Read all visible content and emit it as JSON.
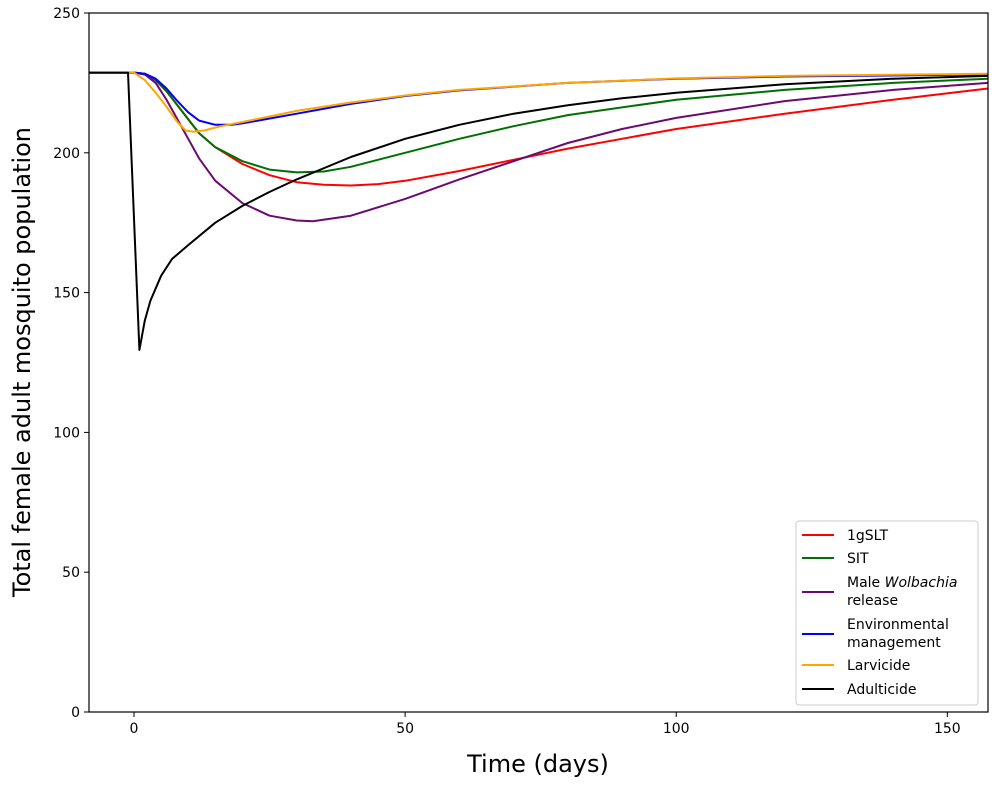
{
  "chart_data": {
    "type": "line",
    "title": "",
    "xlabel": "Time (days)",
    "ylabel": "Total female adult mosquito population",
    "xlim": [
      -8.3,
      157.5
    ],
    "ylim": [
      0,
      250
    ],
    "xticks": [
      0,
      50,
      100,
      150
    ],
    "yticks": [
      0,
      50,
      100,
      150,
      200,
      250
    ],
    "grid": false,
    "legend_placement": "lower-right",
    "series": [
      {
        "name": "1gSLT",
        "color": "#ff0000",
        "points": [
          [
            -8.3,
            228.7
          ],
          [
            0,
            228.7
          ],
          [
            2,
            228.3
          ],
          [
            4,
            226
          ],
          [
            6,
            222
          ],
          [
            8,
            217
          ],
          [
            10,
            212
          ],
          [
            12,
            207
          ],
          [
            15,
            202
          ],
          [
            20,
            196
          ],
          [
            25,
            192
          ],
          [
            30,
            189.5
          ],
          [
            35,
            188.6
          ],
          [
            40,
            188.3
          ],
          [
            45,
            188.8
          ],
          [
            50,
            190
          ],
          [
            60,
            193.5
          ],
          [
            70,
            197.5
          ],
          [
            80,
            201.5
          ],
          [
            90,
            205
          ],
          [
            100,
            208.5
          ],
          [
            120,
            214
          ],
          [
            140,
            219
          ],
          [
            157.5,
            223
          ]
        ]
      },
      {
        "name": "SIT",
        "color": "#007000",
        "points": [
          [
            -8.3,
            228.7
          ],
          [
            0,
            228.7
          ],
          [
            2,
            228.3
          ],
          [
            4,
            226
          ],
          [
            6,
            222
          ],
          [
            8,
            217
          ],
          [
            10,
            212
          ],
          [
            12,
            207
          ],
          [
            15,
            202
          ],
          [
            20,
            197
          ],
          [
            25,
            194
          ],
          [
            30,
            193
          ],
          [
            35,
            193.3
          ],
          [
            40,
            195
          ],
          [
            50,
            200
          ],
          [
            60,
            205
          ],
          [
            70,
            209.5
          ],
          [
            80,
            213.5
          ],
          [
            100,
            219
          ],
          [
            120,
            222.5
          ],
          [
            140,
            225
          ],
          [
            157.5,
            226.5
          ]
        ]
      },
      {
        "name": "Male Wolbachia release",
        "name_prefix": "Male ",
        "name_italic": "Wolbachia",
        "name_suffix": "release",
        "color": "#6a0a72",
        "points": [
          [
            -8.3,
            228.7
          ],
          [
            0,
            228.7
          ],
          [
            2,
            228
          ],
          [
            4,
            225
          ],
          [
            6,
            219
          ],
          [
            8,
            212
          ],
          [
            10,
            205
          ],
          [
            12,
            198
          ],
          [
            15,
            190
          ],
          [
            20,
            182
          ],
          [
            25,
            177.5
          ],
          [
            30,
            175.8
          ],
          [
            33,
            175.5
          ],
          [
            40,
            177.5
          ],
          [
            50,
            183.5
          ],
          [
            60,
            190.5
          ],
          [
            70,
            197
          ],
          [
            80,
            203.5
          ],
          [
            90,
            208.5
          ],
          [
            100,
            212.5
          ],
          [
            120,
            218.5
          ],
          [
            140,
            222.5
          ],
          [
            157.5,
            225
          ]
        ]
      },
      {
        "name": "Environmental management",
        "name_line1": "Environmental",
        "name_line2": "management",
        "color": "#0000ff",
        "points": [
          [
            -8.3,
            228.7
          ],
          [
            0,
            228.7
          ],
          [
            2,
            228.3
          ],
          [
            4,
            226.5
          ],
          [
            6,
            223
          ],
          [
            8,
            218.5
          ],
          [
            10,
            214.5
          ],
          [
            12,
            211.5
          ],
          [
            15,
            210
          ],
          [
            18,
            210
          ],
          [
            20,
            210.5
          ],
          [
            30,
            214
          ],
          [
            40,
            217.5
          ],
          [
            50,
            220.3
          ],
          [
            60,
            222.3
          ],
          [
            80,
            225
          ],
          [
            100,
            226.5
          ],
          [
            120,
            227.3
          ],
          [
            157.5,
            228
          ]
        ]
      },
      {
        "name": "Larvicide",
        "color": "#ffa500",
        "points": [
          [
            -8.3,
            228.7
          ],
          [
            0,
            228.7
          ],
          [
            2,
            226
          ],
          [
            4,
            221.5
          ],
          [
            6,
            216.5
          ],
          [
            8,
            211
          ],
          [
            9.5,
            208
          ],
          [
            11,
            207.5
          ],
          [
            13,
            208
          ],
          [
            16,
            209.5
          ],
          [
            20,
            211
          ],
          [
            30,
            215
          ],
          [
            40,
            218
          ],
          [
            50,
            220.5
          ],
          [
            60,
            222.5
          ],
          [
            80,
            225
          ],
          [
            100,
            226.6
          ],
          [
            120,
            227.5
          ],
          [
            157.5,
            228.3
          ]
        ]
      },
      {
        "name": "Adulticide",
        "color": "#000000",
        "points": [
          [
            -8.3,
            228.7
          ],
          [
            -1.1,
            228.7
          ],
          [
            1,
            129.5
          ],
          [
            2,
            140
          ],
          [
            3,
            147
          ],
          [
            5,
            156
          ],
          [
            7,
            162
          ],
          [
            10,
            167
          ],
          [
            15,
            175
          ],
          [
            20,
            181
          ],
          [
            25,
            186
          ],
          [
            30,
            190.5
          ],
          [
            40,
            198.5
          ],
          [
            50,
            205
          ],
          [
            60,
            210
          ],
          [
            70,
            214
          ],
          [
            80,
            217
          ],
          [
            90,
            219.5
          ],
          [
            100,
            221.5
          ],
          [
            120,
            224.5
          ],
          [
            140,
            226.5
          ],
          [
            157.5,
            227.5
          ]
        ]
      }
    ]
  }
}
